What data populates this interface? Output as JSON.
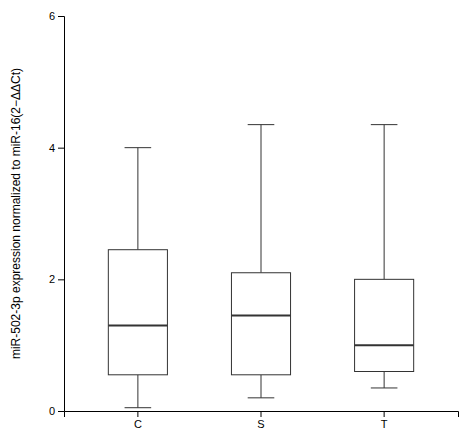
{
  "chart_data": {
    "type": "box",
    "categories": [
      "C",
      "S",
      "T"
    ],
    "boxes": [
      {
        "whisker_low": 0.05,
        "q1": 0.55,
        "median": 1.3,
        "q3": 2.45,
        "whisker_high": 4.0
      },
      {
        "whisker_low": 0.2,
        "q1": 0.55,
        "median": 1.45,
        "q3": 2.1,
        "whisker_high": 4.35
      },
      {
        "whisker_low": 0.35,
        "q1": 0.6,
        "median": 1.0,
        "q3": 2.0,
        "whisker_high": 4.35
      }
    ],
    "ylabel": "miR-502-3p expression normalized to miR-16(2−ΔΔCt)",
    "ylim": [
      0,
      6
    ],
    "yticks": [
      0,
      2,
      4,
      6
    ],
    "grid": false
  }
}
